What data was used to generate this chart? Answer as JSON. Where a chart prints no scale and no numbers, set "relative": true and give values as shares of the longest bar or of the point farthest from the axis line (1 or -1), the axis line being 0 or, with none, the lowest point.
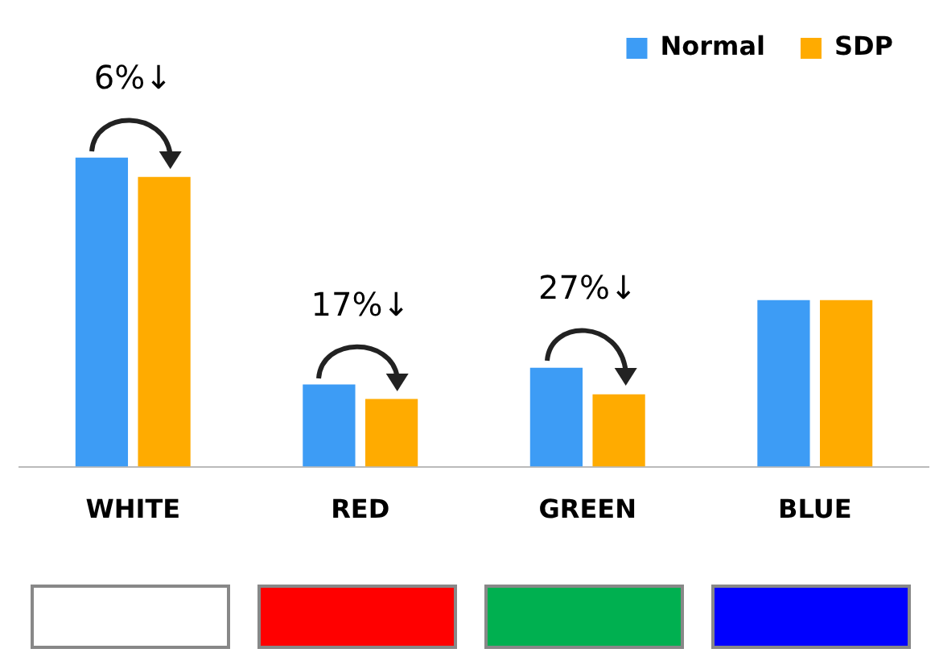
{
  "chart_data": {
    "type": "bar",
    "relative": true,
    "categories": [
      "WHITE",
      "RED",
      "GREEN",
      "BLUE"
    ],
    "series": [
      {
        "name": "Normal",
        "color": "#3d9cf5",
        "values": [
          1,
          0.266,
          0.32,
          0.539
        ]
      },
      {
        "name": "SDP",
        "color": "#ffab00",
        "values": [
          0.9375,
          0.219,
          0.234,
          0.539
        ]
      }
    ],
    "legend": "top right",
    "grid": false,
    "annotations": [
      "6%↓",
      "17%↓",
      "27%↓"
    ]
  }
}
